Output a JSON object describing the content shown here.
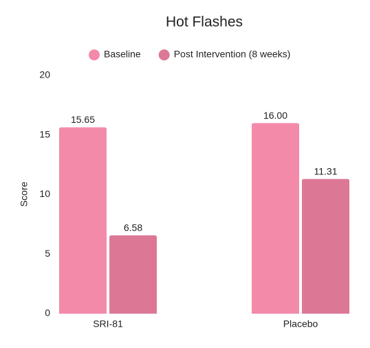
{
  "chart_data": {
    "type": "bar",
    "title": "Hot Flashes",
    "y_label": "Score",
    "categories": [
      "SRI-81",
      "Placebo"
    ],
    "series": [
      {
        "name": "Baseline",
        "color": "#f48aaa",
        "values": [
          15.65,
          16
        ],
        "value_labels": [
          "15.65",
          "16.00"
        ]
      },
      {
        "name": "Post Intervention (8 weeks)",
        "color": "#dc7896",
        "values": [
          6.58,
          11.31
        ],
        "value_labels": [
          "6.58",
          "11.31"
        ]
      }
    ],
    "ylim": [
      0,
      20
    ],
    "yticks": [
      0,
      5,
      10,
      15,
      20
    ],
    "grid": false
  }
}
